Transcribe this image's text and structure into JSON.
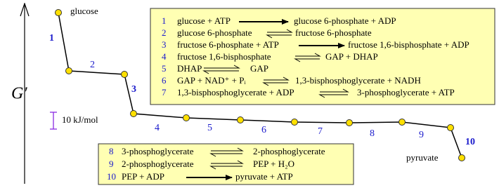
{
  "profile": {
    "start_label": "glucose",
    "end_label": "pyruvate",
    "axis_label": "G′",
    "scale_label": "10 kJ/mol",
    "steps": [
      "1",
      "2",
      "3",
      "4",
      "5",
      "6",
      "7",
      "8",
      "9",
      "10"
    ]
  },
  "boxes": [
    {
      "reactions": [
        {
          "number": "1",
          "left": "glucose + ATP",
          "arrow": "irreversible",
          "right": "glucose 6-phosphate + ADP"
        },
        {
          "number": "2",
          "left": "glucose 6-phosphate",
          "arrow": "reversible",
          "right": "fructose 6-phosphate"
        },
        {
          "number": "3",
          "left": "fructose 6-phosphate + ATP",
          "arrow": "irreversible",
          "right": "fructose 1,6-bisphosphate + ADP"
        },
        {
          "number": "4",
          "left": "fructose 1,6-bisphosphate",
          "arrow": "reversible",
          "right": "GAP + DHAP"
        },
        {
          "number": "5",
          "left": "DHAP",
          "arrow": "reversible",
          "right": "GAP"
        },
        {
          "number": "6",
          "left": "GAP + NAD⁺ + Pᵢ",
          "arrow": "reversible",
          "right": "1,3-bisphosphoglycerate + NADH"
        },
        {
          "number": "7",
          "left": "1,3-bisphosphoglycerate + ADP",
          "arrow": "reversible",
          "right": "3-phosphoglycerate + ATP"
        }
      ]
    },
    {
      "reactions": [
        {
          "number": "8",
          "left": "3-phosphoglycerate",
          "arrow": "reversible",
          "right": "2-phosphoglycerate"
        },
        {
          "number": "9",
          "left": "2-phosphoglycerate",
          "arrow": "reversible",
          "right": "PEP + H₂O"
        },
        {
          "number": "10",
          "left": "PEP + ADP",
          "arrow": "irreversible",
          "right": "pyruvate + ATP"
        }
      ]
    }
  ]
}
